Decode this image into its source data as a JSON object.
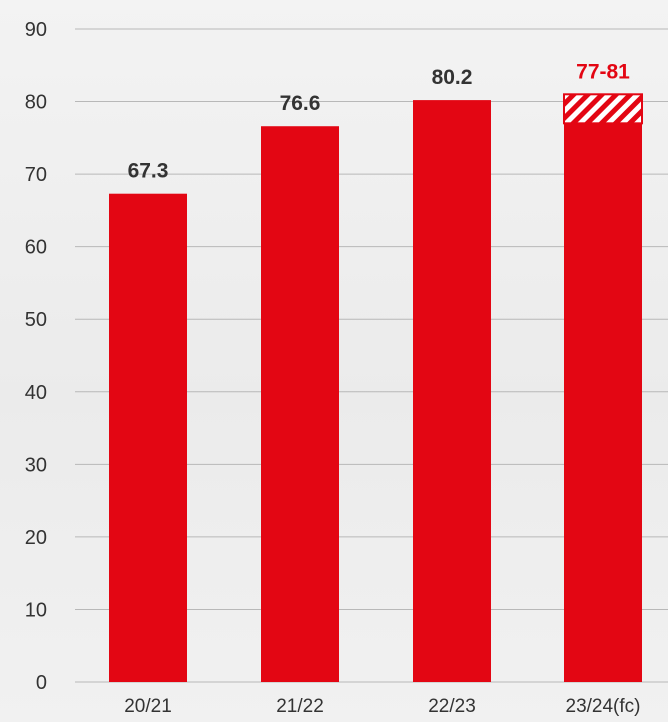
{
  "chart_data": {
    "type": "bar",
    "categories": [
      "20/21",
      "21/22",
      "22/23",
      "23/24(fc)"
    ],
    "values": [
      67.3,
      76.6,
      80.2,
      77
    ],
    "forecast_range": {
      "category": "23/24(fc)",
      "low": 77,
      "high": 81
    },
    "data_labels": [
      "67.3",
      "76.6",
      "80.2",
      "77-81"
    ],
    "y_ticks": [
      "0",
      "10",
      "20",
      "30",
      "40",
      "50",
      "60",
      "70",
      "80",
      "90"
    ],
    "ylim": [
      0,
      90
    ],
    "grid": true,
    "title": "",
    "xlabel": "",
    "ylabel": "",
    "colors": {
      "bar": "#e30613",
      "forecast_label": "#e30613",
      "label": "#333333",
      "grid": "#b8b8b8"
    }
  }
}
